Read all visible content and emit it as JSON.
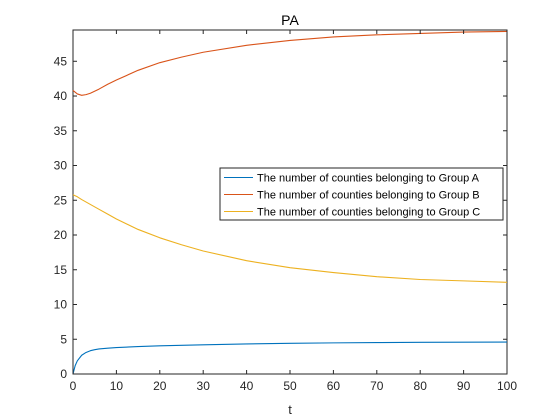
{
  "chart_data": {
    "type": "line",
    "title": "PA",
    "xlabel": "t",
    "ylabel": "",
    "xlim": [
      0,
      100
    ],
    "ylim": [
      0,
      49.5
    ],
    "xticks": [
      0,
      10,
      20,
      30,
      40,
      50,
      60,
      70,
      80,
      90,
      100
    ],
    "yticks": [
      0,
      5,
      10,
      15,
      20,
      25,
      30,
      35,
      40,
      45
    ],
    "grid": false,
    "legend_position": "right",
    "series": [
      {
        "name": "The number of counties belonging to Group A",
        "color": "#0072BD",
        "x": [
          0,
          0.5,
          1,
          2,
          3,
          4,
          5,
          6,
          8,
          10,
          15,
          20,
          30,
          40,
          50,
          60,
          70,
          80,
          90,
          100
        ],
        "y": [
          0,
          1.2,
          1.9,
          2.7,
          3.1,
          3.35,
          3.5,
          3.6,
          3.72,
          3.8,
          3.95,
          4.05,
          4.2,
          4.32,
          4.42,
          4.48,
          4.52,
          4.56,
          4.58,
          4.6
        ]
      },
      {
        "name": "The number of counties belonging to Group B",
        "color": "#D95319",
        "x": [
          0,
          1,
          2,
          3,
          4,
          6,
          8,
          10,
          15,
          20,
          25,
          30,
          40,
          50,
          60,
          70,
          80,
          90,
          100
        ],
        "y": [
          40.8,
          40.3,
          40.1,
          40.2,
          40.4,
          41.0,
          41.7,
          42.3,
          43.7,
          44.8,
          45.6,
          46.3,
          47.3,
          48.0,
          48.5,
          48.8,
          49.0,
          49.2,
          49.3
        ]
      },
      {
        "name": "The number of counties belonging to Group C",
        "color": "#EDB120",
        "x": [
          0,
          1,
          2,
          4,
          6,
          8,
          10,
          15,
          20,
          25,
          30,
          40,
          50,
          60,
          70,
          80,
          90,
          100
        ],
        "y": [
          25.8,
          25.5,
          25.1,
          24.4,
          23.7,
          23.0,
          22.3,
          20.8,
          19.6,
          18.6,
          17.7,
          16.3,
          15.3,
          14.6,
          14.0,
          13.6,
          13.4,
          13.2
        ]
      }
    ]
  }
}
